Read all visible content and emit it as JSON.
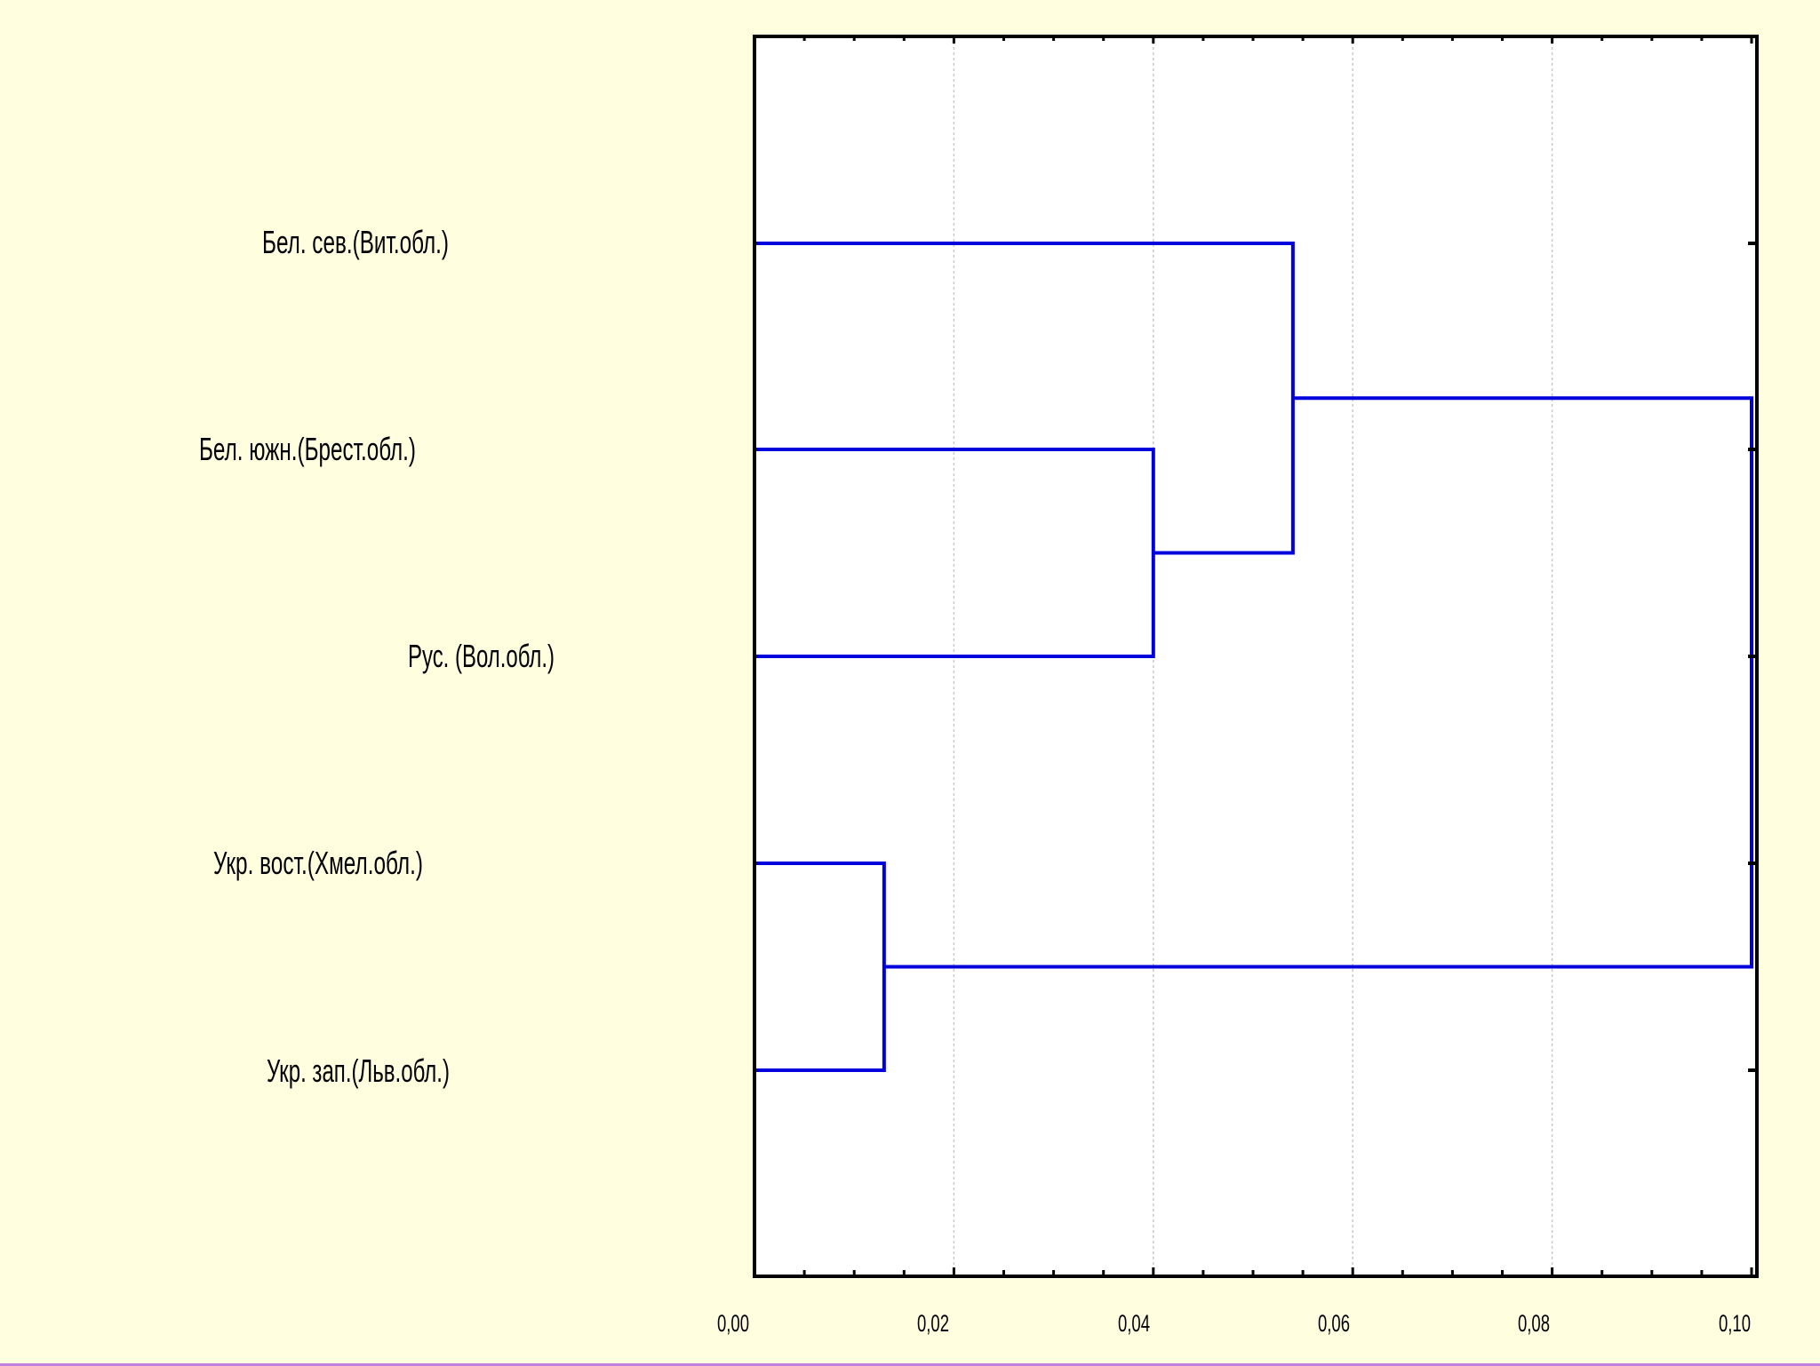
{
  "chart_data": {
    "type": "dendrogram",
    "orientation": "horizontal",
    "title": "",
    "xlabel": "",
    "ylabel": "",
    "xlim": [
      0,
      0.1
    ],
    "x_ticks": [
      "0,00",
      "0,02",
      "0,04",
      "0,06",
      "0,08",
      "0,10"
    ],
    "x_tick_values": [
      0,
      0.02,
      0.04,
      0.06,
      0.08,
      0.1
    ],
    "grid": true,
    "colors": {
      "background": "#ffffe0",
      "plot_area": "#ffffff",
      "branch": "#0000dd",
      "axis": "#000000",
      "grid": "#c8c8c8"
    },
    "leaves": [
      "Бел. сев.(Вит.обл.)",
      "Бел. южн.(Брест.обл.)",
      "Рус. (Вол.обл.)",
      "Укр. вост.(Хмел.обл.)",
      "Укр. зап.(Льв.обл.)"
    ],
    "merges": [
      {
        "left": "Укр. вост.(Хмел.обл.)",
        "right": "Укр. зап.(Льв.обл.)",
        "height": 0.013
      },
      {
        "left": "Бел. южн.(Брест.обл.)",
        "right": "Рус. (Вол.обл.)",
        "height": 0.04
      },
      {
        "left": "Бел. сев.(Вит.обл.)",
        "right": "cluster-2",
        "height": 0.054
      },
      {
        "left": "cluster-3",
        "right": "cluster-1",
        "height": 0.1
      }
    ]
  }
}
